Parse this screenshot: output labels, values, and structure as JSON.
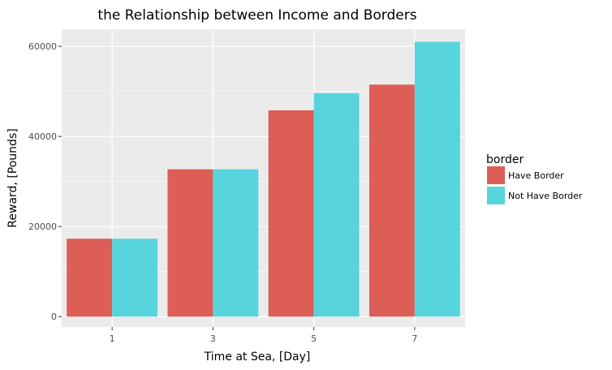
{
  "chart_data": {
    "type": "bar",
    "title": "the Relationship between Income and Borders",
    "xlabel": "Time at Sea, [Day]",
    "ylabel": "Reward, [Pounds]",
    "categories": [
      "1",
      "3",
      "5",
      "7"
    ],
    "ylim": [
      -2300,
      63800
    ],
    "yticks": [
      0,
      20000,
      40000,
      60000
    ],
    "ytick_labels": [
      "0",
      "20000",
      "40000",
      "60000"
    ],
    "grid": true,
    "legend": {
      "title": "border",
      "placement": "right"
    },
    "series": [
      {
        "name": "Have Border",
        "color": "#dc5e57",
        "values": [
          17300,
          32700,
          45800,
          51500
        ]
      },
      {
        "name": "Not Have Border",
        "color": "#57d4dc",
        "values": [
          17300,
          32700,
          49600,
          61000
        ]
      }
    ]
  }
}
